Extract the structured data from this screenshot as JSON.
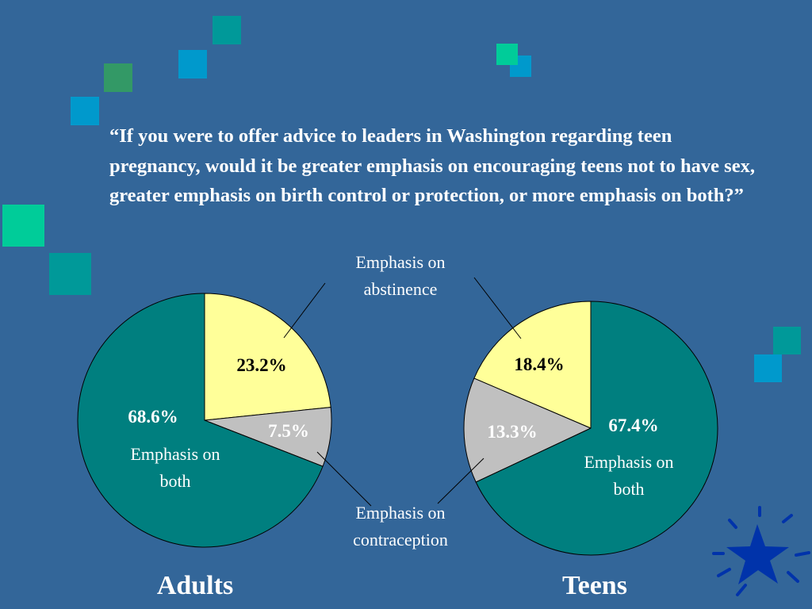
{
  "question": "“If you were to offer advice to leaders in Washington regarding teen pregnancy, would it be greater emphasis on encouraging teens not to have sex, greater emphasis on birth control or protection, or more emphasis on both?”",
  "callouts": {
    "abstinence": "Emphasis on abstinence",
    "contraception": "Emphasis on contraception"
  },
  "colors": {
    "background": "#336699",
    "both": "#007f7f",
    "abstinence": "#ffff99",
    "contraception": "#c0c0c0",
    "deco_teal": "#009999",
    "deco_blue": "#0099cc",
    "deco_green": "#339966",
    "deco_mint": "#00cc99",
    "star": "#0033aa"
  },
  "chart_data": [
    {
      "type": "pie",
      "title": "Adults",
      "slices": [
        {
          "label": "Emphasis on abstinence",
          "value": 23.2,
          "display": "23.2%"
        },
        {
          "label": "Emphasis on contraception",
          "value": 7.5,
          "display": "7.5%"
        },
        {
          "label": "Emphasis on both",
          "value": 68.6,
          "display": "68.6%"
        }
      ],
      "inner_label_both": "Emphasis on both"
    },
    {
      "type": "pie",
      "title": "Teens",
      "slices": [
        {
          "label": "Emphasis on abstinence",
          "value": 18.4,
          "display": "18.4%"
        },
        {
          "label": "Emphasis on contraception",
          "value": 13.3,
          "display": "13.3%"
        },
        {
          "label": "Emphasis on both",
          "value": 67.4,
          "display": "67.4%"
        }
      ],
      "inner_label_both": "Emphasis on both"
    }
  ]
}
